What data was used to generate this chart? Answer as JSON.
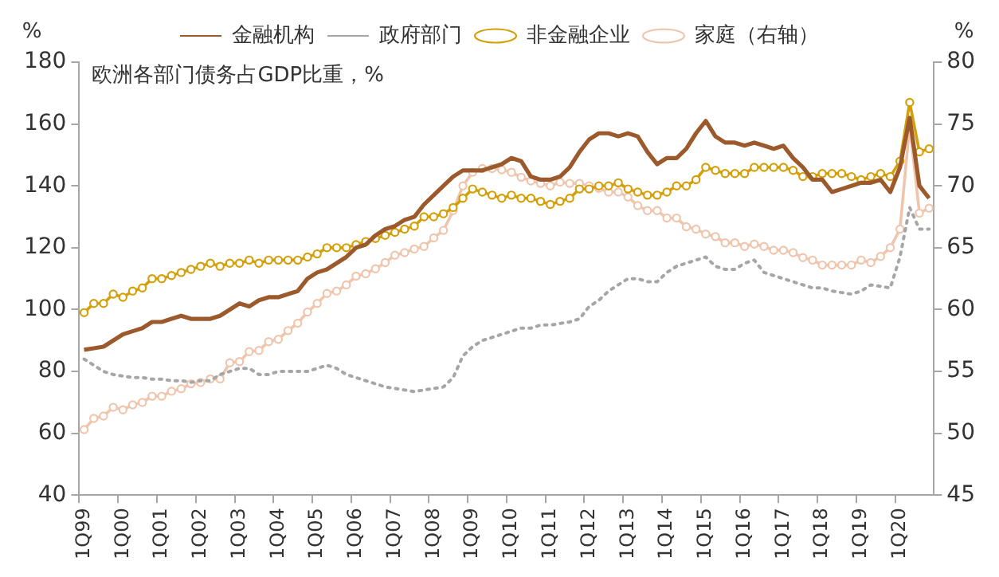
{
  "chart_data": {
    "type": "line",
    "title": "欧洲各部门债务占GDP比重，%",
    "ylabel": "%",
    "y2label": "%",
    "categories": [
      "1Q99",
      null,
      null,
      null,
      "1Q00",
      null,
      null,
      null,
      "1Q01",
      null,
      null,
      null,
      "1Q02",
      null,
      null,
      null,
      "1Q03",
      null,
      null,
      null,
      "1Q04",
      null,
      null,
      null,
      "1Q05",
      null,
      null,
      null,
      "1Q06",
      null,
      null,
      null,
      "1Q07",
      null,
      null,
      null,
      "1Q08",
      null,
      null,
      null,
      "1Q09",
      null,
      null,
      null,
      "1Q10",
      null,
      null,
      null,
      "1Q11",
      null,
      null,
      null,
      "1Q12",
      null,
      null,
      null,
      "1Q13",
      null,
      null,
      null,
      "1Q14",
      null,
      null,
      null,
      "1Q15",
      null,
      null,
      null,
      "1Q16",
      null,
      null,
      null,
      "1Q17",
      null,
      null,
      null,
      "1Q18",
      null,
      null,
      null,
      "1Q19",
      null,
      null,
      null,
      "1Q20",
      null,
      null,
      null
    ],
    "series": [
      {
        "name": "金融机构",
        "color": "#9c5a2c",
        "marker": "none",
        "line_style": "solid",
        "values": [
          87,
          87.5,
          88,
          90,
          92,
          93,
          94,
          96,
          96,
          97,
          98,
          97,
          97,
          97,
          98,
          100,
          102,
          101,
          103,
          104,
          104,
          105,
          106,
          110,
          112,
          113,
          115,
          117,
          120,
          121,
          124,
          126,
          127,
          129,
          130,
          134,
          137,
          140,
          143,
          145,
          145,
          145,
          146,
          147,
          149,
          148,
          143,
          142,
          142,
          143,
          146,
          151,
          155,
          157,
          157,
          156,
          157,
          156,
          151,
          147,
          149,
          149,
          152,
          157,
          161,
          156,
          154,
          154,
          153,
          154,
          153,
          152,
          153,
          149,
          146,
          142,
          142,
          138,
          139,
          140,
          141,
          141,
          142,
          138,
          146,
          162,
          140,
          136
        ]
      },
      {
        "name": "政府部门",
        "color": "#a6a6a6",
        "marker": "none",
        "line_style": "dotted",
        "values": [
          84,
          82,
          80,
          79,
          78.5,
          78,
          78,
          77.5,
          77.5,
          77,
          77,
          76.5,
          77,
          77,
          79,
          80,
          81,
          81,
          79,
          79,
          80,
          80,
          80,
          80,
          81,
          82,
          81,
          79,
          78,
          77,
          76,
          75,
          74.5,
          74,
          73.5,
          74,
          74.5,
          75,
          78,
          85,
          88,
          90,
          91,
          92,
          93,
          94,
          94,
          95,
          95,
          95.5,
          96,
          97,
          101,
          103,
          106,
          108,
          110,
          110,
          109,
          109,
          112,
          114,
          115,
          116,
          117,
          114,
          113,
          113,
          115,
          116,
          112,
          111,
          110,
          109,
          108,
          107,
          107,
          106,
          105.5,
          105,
          106,
          108,
          107.5,
          107,
          117,
          133,
          126,
          126
        ]
      },
      {
        "name": "非金融企业",
        "color": "#d4a00a",
        "marker": "circle",
        "line_style": "solid",
        "values": [
          99,
          102,
          102,
          105,
          104,
          106,
          107,
          110,
          110,
          111,
          112,
          113,
          114,
          115,
          114,
          115,
          115,
          116,
          115,
          116,
          116,
          116,
          116,
          117,
          118,
          120,
          120,
          120,
          121,
          122,
          123,
          124,
          125,
          126,
          127,
          130,
          130,
          131,
          133,
          136,
          139,
          138,
          137,
          136,
          137,
          136,
          136,
          135,
          134,
          135,
          136,
          139,
          139,
          140,
          140,
          141,
          139,
          138,
          137,
          137,
          138,
          140,
          140,
          142,
          146,
          145,
          144,
          144,
          144,
          146,
          146,
          146,
          146,
          145,
          143,
          143,
          144,
          144,
          144,
          143,
          142,
          143,
          144,
          143,
          148,
          167,
          151,
          152
        ]
      },
      {
        "name": "家庭（右轴）",
        "color": "#efc6ad",
        "marker": "circle",
        "line_style": "solid",
        "axis": "y2",
        "values": [
          50.3,
          51.2,
          51.4,
          52.1,
          51.9,
          52.3,
          52.5,
          53,
          53,
          53.4,
          53.6,
          54,
          54.1,
          54.4,
          54.4,
          55.7,
          55.8,
          56.6,
          56.7,
          57.4,
          57.6,
          58.3,
          58.9,
          59.8,
          60.5,
          61.3,
          61.5,
          62,
          62.7,
          62.9,
          63.3,
          63.8,
          64.4,
          64.6,
          64.9,
          65.1,
          65.8,
          66.4,
          68,
          70,
          71.1,
          71.4,
          71.4,
          71.3,
          71.1,
          70.7,
          70.4,
          70.2,
          70,
          70.3,
          70.2,
          70.2,
          70,
          69.8,
          69.5,
          69.5,
          69.1,
          68.4,
          68,
          68,
          67.4,
          67.4,
          66.7,
          66.5,
          66.1,
          65.9,
          65.4,
          65.4,
          65.1,
          65.3,
          65.1,
          64.8,
          64.8,
          64.6,
          64.2,
          64,
          63.6,
          63.6,
          63.6,
          63.6,
          64,
          63.8,
          64.3,
          65,
          66.5,
          74.9,
          67.8,
          68.2
        ]
      }
    ],
    "ylim": [
      40,
      180
    ],
    "yticks": [
      40,
      60,
      80,
      100,
      120,
      140,
      160,
      180
    ],
    "y2lim": [
      45,
      80
    ],
    "y2ticks": [
      45,
      50,
      55,
      60,
      65,
      70,
      75,
      80
    ],
    "grid": false,
    "legend": "top"
  }
}
